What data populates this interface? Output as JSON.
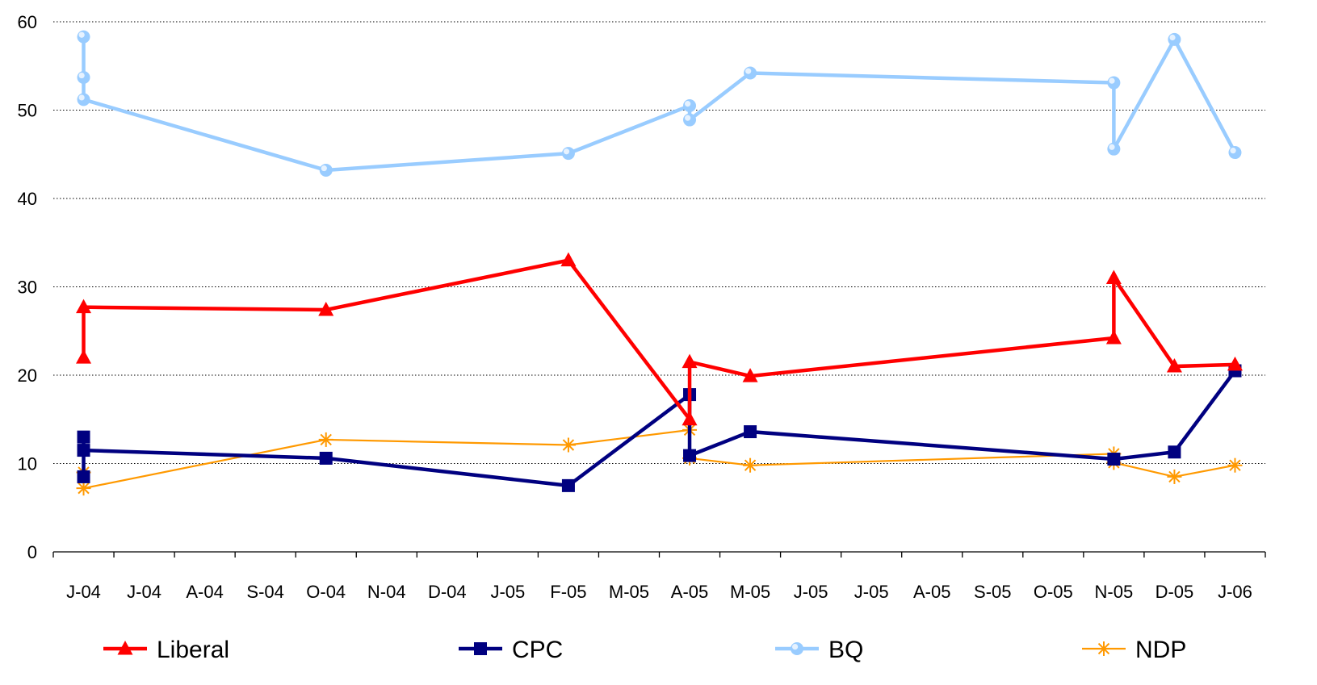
{
  "chart_data": {
    "type": "line",
    "title": "",
    "xlabel": "",
    "ylabel": "",
    "ylim": [
      0,
      60
    ],
    "yticks": [
      0,
      10,
      20,
      30,
      40,
      50,
      60
    ],
    "grid": "horizontal dotted",
    "legend_position": "bottom",
    "categories": [
      "J-04",
      "J-04",
      "A-04",
      "S-04",
      "O-04",
      "N-04",
      "D-04",
      "J-05",
      "F-05",
      "M-05",
      "A-05",
      "M-05",
      "J-05",
      "J-05",
      "A-05",
      "S-05",
      "O-05",
      "N-05",
      "D-05",
      "J-06"
    ],
    "series": [
      {
        "name": "Liberal",
        "color": "#ff0000",
        "marker": "triangle",
        "points": [
          [
            0,
            22.0
          ],
          [
            0,
            27.7
          ],
          [
            4,
            27.4
          ],
          [
            8,
            33.0
          ],
          [
            10,
            15.0
          ],
          [
            10,
            21.5
          ],
          [
            11,
            19.9
          ],
          [
            17,
            24.2
          ],
          [
            17,
            31.0
          ],
          [
            18,
            21.0
          ],
          [
            19,
            21.2
          ]
        ]
      },
      {
        "name": "CPC",
        "color": "#000080",
        "marker": "square",
        "points": [
          [
            0,
            8.5
          ],
          [
            0,
            13.0
          ],
          [
            0,
            11.5
          ],
          [
            4,
            10.6
          ],
          [
            8,
            7.5
          ],
          [
            10,
            17.8
          ],
          [
            10,
            10.9
          ],
          [
            11,
            13.6
          ],
          [
            17,
            10.5
          ],
          [
            18,
            11.3
          ],
          [
            19,
            20.5
          ]
        ]
      },
      {
        "name": "BQ",
        "color": "#99ccff",
        "marker": "circle",
        "points": [
          [
            0,
            58.3
          ],
          [
            0,
            53.7
          ],
          [
            0,
            51.2
          ],
          [
            4,
            43.2
          ],
          [
            8,
            45.1
          ],
          [
            10,
            50.5
          ],
          [
            10,
            48.9
          ],
          [
            11,
            54.2
          ],
          [
            17,
            53.1
          ],
          [
            17,
            45.6
          ],
          [
            18,
            58.0
          ],
          [
            19,
            45.2
          ]
        ]
      },
      {
        "name": "NDP",
        "color": "#ff9900",
        "marker": "asterisk",
        "points": [
          [
            0,
            9.0
          ],
          [
            0,
            7.2
          ],
          [
            4,
            12.7
          ],
          [
            8,
            12.1
          ],
          [
            10,
            13.8
          ],
          [
            10,
            10.6
          ],
          [
            11,
            9.8
          ],
          [
            17,
            11.1
          ],
          [
            17,
            10.1
          ],
          [
            18,
            8.5
          ],
          [
            19,
            9.8
          ]
        ]
      }
    ]
  }
}
